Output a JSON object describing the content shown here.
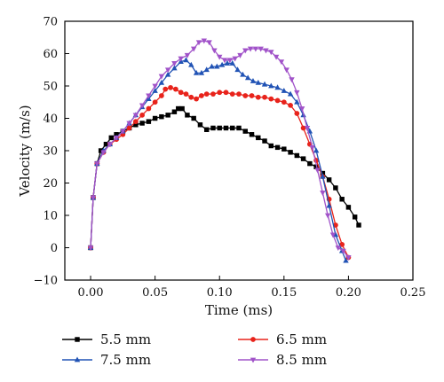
{
  "chart_data": {
    "type": "line",
    "title": "",
    "xlabel": "Time (ms)",
    "ylabel": "Velocity (m/s)",
    "xlim": [
      -0.02,
      0.25
    ],
    "ylim": [
      -10,
      70
    ],
    "xticks": [
      0.0,
      0.05,
      0.1,
      0.15,
      0.2,
      0.25
    ],
    "xtick_labels": [
      "0.00",
      "0.05",
      "0.10",
      "0.15",
      "0.20",
      "0.25"
    ],
    "yticks": [
      -10,
      0,
      10,
      20,
      30,
      40,
      50,
      60,
      70
    ],
    "ytick_labels": [
      "−10",
      "0",
      "10",
      "20",
      "30",
      "40",
      "50",
      "60",
      "70"
    ],
    "grid": false,
    "legend_position": "bottom",
    "series": [
      {
        "name": "5.5 mm",
        "color": "#000000",
        "marker": "square",
        "x": [
          0.0,
          0.002,
          0.005,
          0.008,
          0.012,
          0.016,
          0.02,
          0.025,
          0.03,
          0.035,
          0.04,
          0.045,
          0.05,
          0.055,
          0.06,
          0.065,
          0.068,
          0.071,
          0.075,
          0.08,
          0.085,
          0.09,
          0.095,
          0.1,
          0.105,
          0.11,
          0.115,
          0.12,
          0.125,
          0.13,
          0.135,
          0.14,
          0.145,
          0.15,
          0.155,
          0.16,
          0.165,
          0.17,
          0.175,
          0.18,
          0.185,
          0.19,
          0.195,
          0.2,
          0.205,
          0.208
        ],
        "y": [
          0,
          15.5,
          26,
          30,
          32,
          34,
          35,
          36,
          37,
          38,
          38.5,
          39,
          40,
          40.5,
          41,
          42,
          43,
          43,
          41,
          40,
          38,
          36.5,
          37,
          37,
          37,
          37,
          37,
          36,
          35,
          34,
          33,
          31.5,
          31,
          30.5,
          29.5,
          28.5,
          27.5,
          26,
          25,
          23,
          21,
          18.5,
          15,
          12.5,
          9.5,
          7
        ]
      },
      {
        "name": "6.5 mm",
        "color": "#e8231b",
        "marker": "circle",
        "x": [
          0.0,
          0.002,
          0.005,
          0.01,
          0.015,
          0.02,
          0.025,
          0.03,
          0.035,
          0.04,
          0.045,
          0.05,
          0.055,
          0.058,
          0.062,
          0.066,
          0.07,
          0.074,
          0.078,
          0.082,
          0.086,
          0.09,
          0.095,
          0.1,
          0.105,
          0.11,
          0.115,
          0.12,
          0.125,
          0.13,
          0.135,
          0.14,
          0.145,
          0.15,
          0.155,
          0.16,
          0.165,
          0.17,
          0.175,
          0.18,
          0.185,
          0.19,
          0.195,
          0.2
        ],
        "y": [
          0,
          15.5,
          26,
          29.5,
          32,
          33.5,
          35,
          37,
          39,
          41,
          43,
          45,
          47,
          49,
          49.5,
          49,
          48,
          47.5,
          46.5,
          46,
          47,
          47.5,
          47.5,
          48,
          48,
          47.5,
          47.5,
          47,
          47,
          46.5,
          46.5,
          46,
          45.5,
          45,
          44,
          41.5,
          37,
          32,
          27,
          22,
          15,
          7,
          1,
          -3
        ]
      },
      {
        "name": "7.5 mm",
        "color": "#2153b5",
        "marker": "triangle-up",
        "x": [
          0.0,
          0.002,
          0.005,
          0.01,
          0.015,
          0.02,
          0.025,
          0.03,
          0.035,
          0.04,
          0.045,
          0.05,
          0.055,
          0.06,
          0.065,
          0.07,
          0.074,
          0.078,
          0.082,
          0.086,
          0.09,
          0.094,
          0.098,
          0.102,
          0.106,
          0.11,
          0.114,
          0.118,
          0.122,
          0.126,
          0.13,
          0.135,
          0.14,
          0.145,
          0.15,
          0.155,
          0.16,
          0.165,
          0.17,
          0.175,
          0.18,
          0.185,
          0.19,
          0.195,
          0.198
        ],
        "y": [
          0,
          15.5,
          26,
          30,
          32,
          34,
          36,
          38.5,
          41,
          43.5,
          46,
          48.5,
          51,
          53.5,
          55.5,
          57.5,
          58,
          56.5,
          54,
          54,
          55,
          56,
          56,
          56.5,
          57,
          57,
          55,
          53.5,
          52.5,
          51.5,
          51,
          50.5,
          50,
          49.5,
          48.5,
          47.5,
          45,
          41,
          36,
          30,
          22,
          13,
          4,
          -1,
          -4
        ]
      },
      {
        "name": "8.5 mm",
        "color": "#a153c9",
        "marker": "triangle-down",
        "x": [
          0.0,
          0.002,
          0.005,
          0.01,
          0.015,
          0.02,
          0.025,
          0.03,
          0.035,
          0.04,
          0.045,
          0.05,
          0.055,
          0.06,
          0.065,
          0.07,
          0.075,
          0.08,
          0.084,
          0.088,
          0.092,
          0.096,
          0.1,
          0.104,
          0.108,
          0.112,
          0.116,
          0.12,
          0.124,
          0.128,
          0.132,
          0.136,
          0.14,
          0.144,
          0.148,
          0.152,
          0.156,
          0.16,
          0.164,
          0.168,
          0.172,
          0.176,
          0.18,
          0.184,
          0.188,
          0.192,
          0.196,
          0.2
        ],
        "y": [
          0,
          15.5,
          26,
          29.5,
          32,
          34,
          36,
          38.5,
          41,
          44,
          47,
          50,
          53,
          55,
          57,
          58.5,
          59.5,
          61.5,
          63.5,
          64,
          63.5,
          61,
          59,
          58,
          58,
          58.5,
          59.5,
          61,
          61.5,
          61.5,
          61.5,
          61,
          60.5,
          59,
          57.5,
          55,
          52,
          48,
          43,
          37,
          31,
          24,
          17,
          10,
          4,
          0,
          -1,
          -3
        ]
      }
    ]
  }
}
